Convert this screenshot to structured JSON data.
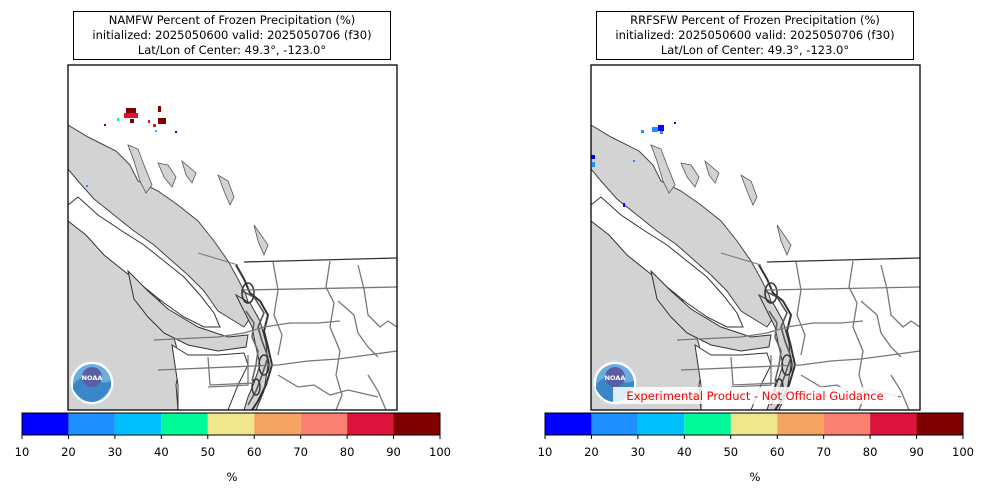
{
  "left_panel": {
    "title_line1": "NAMFW Percent of Frozen Precipitation (%)",
    "title_line2": "initialized: 2025050600 valid: 2025050706 (f30)",
    "title_line3": "Lat/Lon of Center: 49.3°, -123.0°",
    "colorbar_unit": "%",
    "logo_text": "NOAA"
  },
  "right_panel": {
    "title_line1": "RRFSFW Percent of Frozen Precipitation (%)",
    "title_line2": "initialized: 2025050600 valid: 2025050706 (f30)",
    "title_line3": "Lat/Lon of Center: 49.3°, -123.0°",
    "colorbar_unit": "%",
    "disclaimer": "Experimental Product - Not Official Guidance",
    "logo_text": "NOAA"
  },
  "colorbar": {
    "ticks": [
      "10",
      "20",
      "30",
      "40",
      "50",
      "60",
      "70",
      "80",
      "90",
      "100"
    ],
    "colors": [
      "#0000ff",
      "#1e90ff",
      "#00bfff",
      "#00fa9a",
      "#f0e68c",
      "#f4a460",
      "#fa8072",
      "#dc143c",
      "#800000"
    ]
  }
}
